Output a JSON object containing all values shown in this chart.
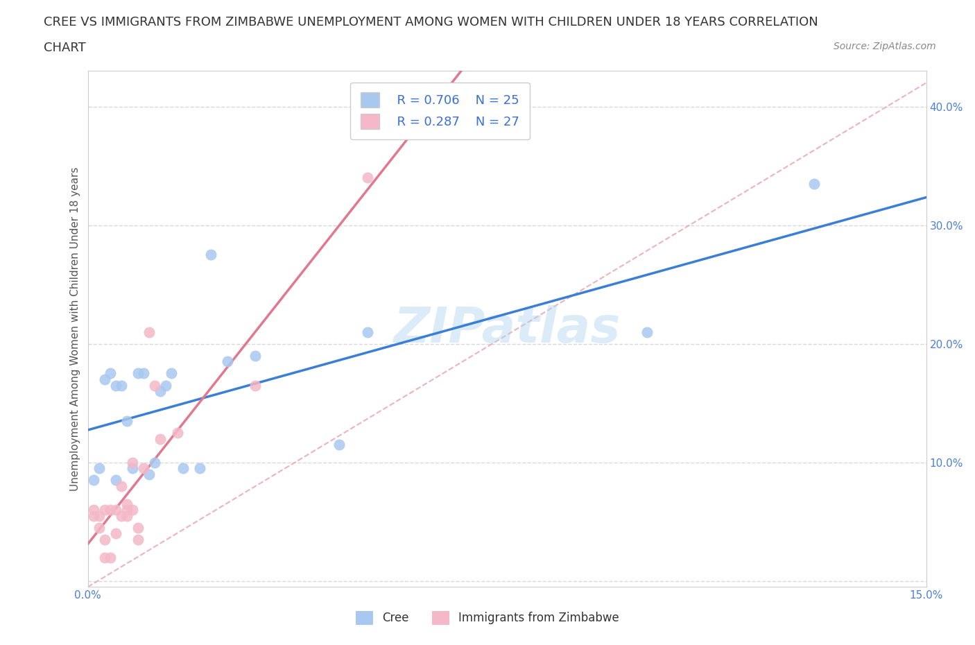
{
  "title_line1": "CREE VS IMMIGRANTS FROM ZIMBABWE UNEMPLOYMENT AMONG WOMEN WITH CHILDREN UNDER 18 YEARS CORRELATION",
  "title_line2": "CHART",
  "source_text": "Source: ZipAtlas.com",
  "ylabel": "Unemployment Among Women with Children Under 18 years",
  "xlim": [
    0.0,
    0.15
  ],
  "ylim": [
    -0.005,
    0.43
  ],
  "x_ticks": [
    0.0,
    0.025,
    0.05,
    0.075,
    0.1,
    0.125,
    0.15
  ],
  "x_tick_labels": [
    "0.0%",
    "",
    "",
    "",
    "",
    "",
    "15.0%"
  ],
  "y_ticks": [
    0.0,
    0.1,
    0.2,
    0.3,
    0.4
  ],
  "y_tick_labels": [
    "",
    "10.0%",
    "20.0%",
    "30.0%",
    "40.0%"
  ],
  "watermark": "ZIPatlas",
  "cree_color": "#a8c8f0",
  "zim_color": "#f4b8c8",
  "cree_line_color": "#3a7fd5",
  "zim_line_color": "#e07890",
  "diagonal_color": "#e8a0b0",
  "legend_R_cree": "R = 0.706",
  "legend_N_cree": "N = 25",
  "legend_R_zim": "R = 0.287",
  "legend_N_zim": "N = 27",
  "cree_points_x": [
    0.001,
    0.002,
    0.003,
    0.004,
    0.005,
    0.005,
    0.006,
    0.007,
    0.008,
    0.009,
    0.01,
    0.011,
    0.012,
    0.013,
    0.014,
    0.015,
    0.017,
    0.02,
    0.022,
    0.025,
    0.03,
    0.045,
    0.05,
    0.1,
    0.13
  ],
  "cree_points_y": [
    0.085,
    0.095,
    0.17,
    0.175,
    0.085,
    0.165,
    0.165,
    0.135,
    0.095,
    0.175,
    0.175,
    0.09,
    0.1,
    0.16,
    0.165,
    0.175,
    0.095,
    0.095,
    0.275,
    0.185,
    0.19,
    0.115,
    0.21,
    0.21,
    0.335
  ],
  "zim_points_x": [
    0.001,
    0.001,
    0.002,
    0.002,
    0.003,
    0.003,
    0.003,
    0.004,
    0.004,
    0.005,
    0.005,
    0.006,
    0.006,
    0.007,
    0.007,
    0.007,
    0.008,
    0.008,
    0.009,
    0.009,
    0.01,
    0.011,
    0.012,
    0.013,
    0.016,
    0.03,
    0.05
  ],
  "zim_points_y": [
    0.055,
    0.06,
    0.045,
    0.055,
    0.02,
    0.035,
    0.06,
    0.02,
    0.06,
    0.04,
    0.06,
    0.055,
    0.08,
    0.055,
    0.06,
    0.065,
    0.06,
    0.1,
    0.035,
    0.045,
    0.095,
    0.21,
    0.165,
    0.12,
    0.125,
    0.165,
    0.34
  ],
  "background_color": "#ffffff",
  "grid_color": "#d8d8d8",
  "title_fontsize": 13,
  "legend_fontsize": 13,
  "tick_fontsize": 11,
  "ylabel_fontsize": 11,
  "source_fontsize": 10
}
